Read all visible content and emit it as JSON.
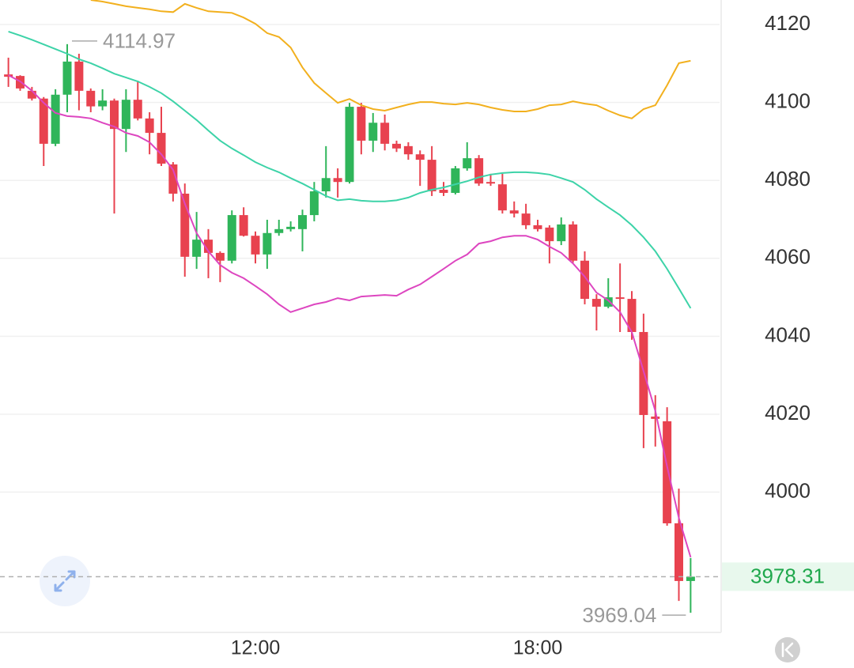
{
  "chart_data": {
    "type": "candlestick",
    "categories": [
      null,
      null,
      null,
      null,
      null,
      null,
      null,
      null,
      null,
      null,
      null,
      null,
      null,
      null,
      null,
      null,
      null,
      null,
      null,
      null,
      null,
      "12:00",
      null,
      null,
      null,
      null,
      null,
      null,
      null,
      null,
      null,
      null,
      null,
      null,
      null,
      null,
      null,
      null,
      null,
      null,
      null,
      null,
      null,
      null,
      null,
      "18:00",
      null,
      null,
      null,
      null,
      null,
      null,
      null,
      null,
      null,
      null,
      null,
      null,
      null
    ],
    "open": [
      4107.2,
      4106.8,
      4103,
      4101,
      4089.4,
      4102,
      4110.5,
      4103,
      4099,
      4100.5,
      4093.2,
      4100.7,
      4095.9,
      4092.2,
      4084.1,
      4076.6,
      4060.4,
      4064.8,
      4061.4,
      4059.4,
      4071.1,
      4065.8,
      4061,
      4066.5,
      4067.5,
      4067.5,
      4071.1,
      4077.2,
      4080.6,
      4079.6,
      4098.9,
      4090.2,
      4094.8,
      4089.4,
      4088.8,
      4086.7,
      4085.3,
      4077.6,
      4076.8,
      4083.1,
      4085.7,
      4079.6,
      4079,
      4072.3,
      4071.5,
      4068.5,
      4067.9,
      4064.4,
      4068.7,
      4059.4,
      4049.6,
      4047.6,
      4050,
      4049.6,
      4041.1,
      4019.4,
      4018.2,
      3992,
      3977.2
    ],
    "high": [
      4111.5,
      4107,
      4104,
      4101.4,
      4103.4,
      4114.97,
      4112.5,
      4103.6,
      4103.4,
      4101,
      4103.4,
      4105.6,
      4097.5,
      4098.9,
      4084.7,
      4079.2,
      4071.9,
      4067.5,
      4061.8,
      4072.3,
      4073.1,
      4066.9,
      4069.9,
      4069.9,
      4069.5,
      4072.5,
      4079.6,
      4088.8,
      4083.1,
      4099.9,
      4099.9,
      4097.3,
      4096.9,
      4090.2,
      4089.8,
      4087.7,
      4088.8,
      4079.6,
      4083.7,
      4089.8,
      4086.5,
      4081.7,
      4081.7,
      4074.6,
      4074,
      4069.9,
      4068.5,
      4070.5,
      4069.5,
      4061.8,
      4050.8,
      4054.9,
      4058.7,
      4051.6,
      4045.8,
      4024.9,
      4021.8,
      4000.9,
      3983.1
    ],
    "low": [
      4104,
      4103,
      4100.5,
      4083.7,
      4088.8,
      4097.5,
      4098,
      4097.5,
      4098,
      4071.5,
      4087.3,
      4095.4,
      4086.7,
      4083.7,
      4074.6,
      4055.3,
      4057.3,
      4054.9,
      4053.9,
      4058.7,
      4065.6,
      4058.7,
      4057.3,
      4065.8,
      4066.9,
      4061.8,
      4069.5,
      4075.6,
      4075.6,
      4079.2,
      4086.7,
      4087.3,
      4087.7,
      4087.3,
      4085.3,
      4078.6,
      4076,
      4076,
      4076.4,
      4082.5,
      4078.6,
      4078.6,
      4071.5,
      4070.5,
      4067.5,
      4066.9,
      4058.7,
      4063.4,
      4058.9,
      4048.2,
      4041.5,
      4047.2,
      4041.1,
      4039.1,
      4011.3,
      4011.7,
      3991.4,
      3972.1,
      3969.04
    ],
    "close": [
      4106.6,
      4103.6,
      4101,
      4089.4,
      4102,
      4110.5,
      4103,
      4099,
      4100.5,
      4093.2,
      4100.7,
      4095.9,
      4092.2,
      4084.3,
      4076.6,
      4060.4,
      4064.8,
      4061.4,
      4059.4,
      4071.1,
      4065.8,
      4061,
      4066.5,
      4067.5,
      4068.1,
      4071.1,
      4077.2,
      4080.6,
      4079.6,
      4098.9,
      4090.2,
      4094.8,
      4089.4,
      4088.2,
      4086.7,
      4085.3,
      4077.2,
      4076.8,
      4083.1,
      4085.7,
      4079.2,
      4079.2,
      4072.3,
      4071.5,
      4068.5,
      4067.5,
      4064.4,
      4068.7,
      4059.4,
      4049.6,
      4047.6,
      4050,
      4049.6,
      4041.1,
      4019.8,
      4018.8,
      3992,
      3977.2,
      3978.31
    ],
    "up_color": "#2fb55a",
    "down_color": "#e8424f",
    "lines": [
      {
        "color": "#f2b01e",
        "values": [
          null,
          null,
          null,
          null,
          null,
          null,
          null,
          4126.3,
          4125.9,
          4125.3,
          4124.7,
          4124.3,
          4123.9,
          4123.4,
          4123.2,
          4125.3,
          4124.3,
          4123.4,
          4123.2,
          4123,
          4121.8,
          4120.2,
          4117.8,
          4116.8,
          4114.1,
          4109,
          4105,
          4102.4,
          4099.9,
          4100.9,
          4099.3,
          4098.3,
          4097.9,
          4098.7,
          4099.5,
          4100.1,
          4100.1,
          4099.7,
          4099.5,
          4099.9,
          4099.5,
          4098.7,
          4098.1,
          4097.7,
          4097.7,
          4098.3,
          4099.3,
          4099.5,
          4100.3,
          4099.7,
          4099.3,
          4097.9,
          4096.7,
          4095.9,
          4098.3,
          4099.3,
          4104.4,
          4110.1,
          4110.7
        ]
      },
      {
        "color": "#3dd3a8",
        "values": [
          4118.2,
          4117.2,
          4116.1,
          4114.9,
          4113.7,
          4112.5,
          4111.1,
          4110.1,
          4108.8,
          4107.4,
          4106.4,
          4105.4,
          4104,
          4102.4,
          4100.3,
          4097.9,
          4095.5,
          4092.8,
          4090.2,
          4088.2,
          4086.5,
          4084.7,
          4083.3,
          4082.1,
          4080.6,
          4079.2,
          4077.6,
          4076,
          4074.9,
          4075.2,
          4074.8,
          4074.6,
          4074.6,
          4074.9,
          4075.6,
          4076.8,
          4077.6,
          4078.2,
          4079,
          4079.8,
          4080.8,
          4081.5,
          4081.9,
          4082.1,
          4082.1,
          4081.9,
          4081.5,
          4080.6,
          4079.6,
          4077.6,
          4075.2,
          4073.1,
          4071.1,
          4068.5,
          4065.4,
          4061.8,
          4057.3,
          4052.3,
          4047.2
        ]
      },
      {
        "color": "#dd46c0",
        "values": [
          4107,
          4105.4,
          4103,
          4099.9,
          4097.3,
          4096.5,
          4096.3,
          4095.9,
          4094.8,
          4093.8,
          4092.2,
          4091.4,
          4089.8,
          4086.7,
          4082.7,
          4074,
          4066.5,
          4061.8,
          4058.3,
          4056.3,
          4054.9,
          4052.9,
          4050.8,
          4048.2,
          4046.2,
          4047.2,
          4048.2,
          4048.8,
          4049.8,
          4049.2,
          4050.2,
          4050.4,
          4050.6,
          4050.4,
          4052,
          4053.3,
          4055.3,
          4057.3,
          4059.4,
          4061,
          4063.8,
          4064.4,
          4065.4,
          4065.8,
          4065.8,
          4064.8,
          4063,
          4061.4,
          4058.7,
          4055.3,
          4051.2,
          4049.2,
          4046.2,
          4041.1,
          4031,
          4020.8,
          4006.6,
          3993.4,
          3983.3
        ]
      }
    ],
    "ylim": [
      3964,
      4126.3
    ],
    "yticks": [
      4000,
      4020,
      4040,
      4060,
      4080,
      4100,
      4120
    ],
    "grid": true
  }
}
